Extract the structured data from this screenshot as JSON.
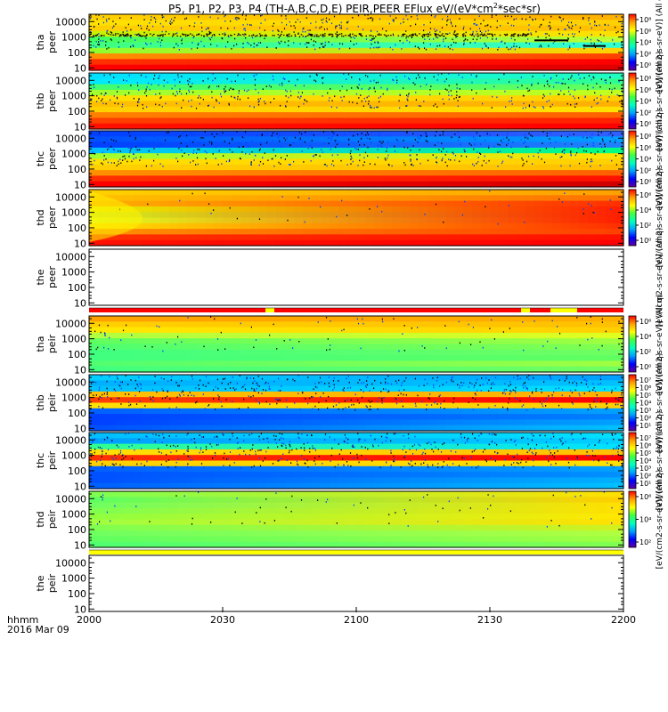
{
  "title_prefix": "P5, P1, P2, P3, P4 (TH-A,B,C,D,E) PEIR,PEER EFlux eV/(eV*cm",
  "title_sup": "2",
  "title_suffix": "*sec*sr)",
  "chart_data": {
    "type": "heatmap",
    "x_axis": {
      "ticks": [
        "2000",
        "2030",
        "2100",
        "2130",
        "2200"
      ],
      "corner_label_line1": "hhmm",
      "corner_label_line2": "2016 Mar 09",
      "range": [
        "20:00",
        "22:00"
      ]
    },
    "y_scale": "log",
    "y_range_eV": [
      7,
      30000
    ],
    "panels": [
      {
        "name": "tha peer",
        "probe": "tha",
        "species": "peer",
        "yticks": [
          "10000",
          "1000",
          "100",
          "10"
        ],
        "cbar_labels": [
          "10⁸",
          "10⁶",
          "10⁴",
          "10²",
          "10⁰"
        ],
        "cbar_text": "[eV/(cm2-s-sr-eV)] (All q)",
        "bar": null,
        "bands": [
          [
            "#ffd000",
            "#ffb000"
          ],
          [
            "#ffe000",
            "#ffd000"
          ],
          [
            "#ffd000",
            "#ffc000"
          ],
          [
            "#c8f000",
            "#ffe000"
          ],
          [
            "#40ff60",
            "#c0ff30"
          ],
          [
            "#40ff80",
            "#30ffd0"
          ],
          [
            "#90ff30",
            "#ffd000"
          ],
          [
            "#ff9000",
            "#ff4000"
          ],
          [
            "#ff3000",
            "#ff0000"
          ],
          [
            "#ff0000",
            "#e00000"
          ]
        ],
        "noise": 0.7,
        "black_line": 0.36,
        "yellow_wedge": false
      },
      {
        "name": "thb peer",
        "probe": "thb",
        "species": "peer",
        "yticks": [
          "10000",
          "1000",
          "100",
          "10"
        ],
        "cbar_labels": [
          "10⁸",
          "10⁶",
          "10⁴",
          "10²",
          "10⁰"
        ],
        "cbar_text": "[eV/(cm2-s-sr-eV)] (All q)",
        "bar": null,
        "bands": [
          [
            "#00e0ff",
            "#20ffc0"
          ],
          [
            "#00e8ff",
            "#30ff90"
          ],
          [
            "#40ff70",
            "#60ff60"
          ],
          [
            "#a0ff30",
            "#c0ff20"
          ],
          [
            "#ffe000",
            "#ffd000"
          ],
          [
            "#ffc000",
            "#ffb000"
          ],
          [
            "#ffd000",
            "#ffe000"
          ],
          [
            "#ff8000",
            "#ff6000"
          ],
          [
            "#ff4000",
            "#ff2000"
          ],
          [
            "#ff1000",
            "#ff0000"
          ]
        ],
        "noise": 0.55,
        "black_line": 0,
        "yellow_wedge": false
      },
      {
        "name": "thc peer",
        "probe": "thc",
        "species": "peer",
        "yticks": [
          "10000",
          "1000",
          "100",
          "10"
        ],
        "cbar_labels": [
          "10⁸",
          "10⁶",
          "10⁴",
          "10²",
          "10⁰"
        ],
        "cbar_text": "[eV/(cm2-s-sr-eV)] (All q)",
        "bar": null,
        "bands": [
          [
            "#0040ff",
            "#3060ff"
          ],
          [
            "#0050ff",
            "#00a0ff"
          ],
          [
            "#0040ff",
            "#2080ff"
          ],
          [
            "#00c0ff",
            "#00ff80"
          ],
          [
            "#a0ff30",
            "#ffe000"
          ],
          [
            "#ffe000",
            "#ffd000"
          ],
          [
            "#ffd000",
            "#ffc000"
          ],
          [
            "#ff9000",
            "#ff6000"
          ],
          [
            "#ff3000",
            "#ff1000"
          ],
          [
            "#ff0000",
            "#d00000"
          ]
        ],
        "noise": 0.65,
        "black_line": 0,
        "yellow_wedge": false
      },
      {
        "name": "thd peer",
        "probe": "thd",
        "species": "peer",
        "yticks": [
          "10000",
          "1000",
          "100",
          "10"
        ],
        "cbar_labels": [
          "10⁶",
          "10⁴",
          "10²",
          "10⁰"
        ],
        "cbar_text": "[eV/(cm2-s-sr-eV)] (All q)",
        "bar": null,
        "bands": [
          [
            "#ffd000",
            "#ffa000"
          ],
          [
            "#ffc000",
            "#ff7000"
          ],
          [
            "#ffb000",
            "#ff3000"
          ],
          [
            "#e8f000",
            "#ff2000"
          ],
          [
            "#d0f020",
            "#ff2000"
          ],
          [
            "#e0ff20",
            "#ff2000"
          ],
          [
            "#ffe000",
            "#ff3000"
          ],
          [
            "#ff9000",
            "#ff4000"
          ],
          [
            "#ff3000",
            "#ff1000"
          ],
          [
            "#ff1000",
            "#ff0000"
          ]
        ],
        "noise": 0.05,
        "black_line": 0,
        "yellow_wedge": true
      },
      {
        "name": "the peer",
        "probe": "the",
        "species": "peer",
        "yticks": [
          "10000",
          "1000",
          "100",
          "10"
        ],
        "cbar_labels": [],
        "cbar_text": "[eV/(cm2-s-sr-eV)] (All q)",
        "bar": "red",
        "bands": [],
        "noise": 0,
        "black_line": 0,
        "yellow_wedge": false
      },
      {
        "name": "tha peir",
        "probe": "tha",
        "species": "peir",
        "yticks": [
          "10000",
          "1000",
          "100",
          "10"
        ],
        "cbar_labels": [
          "10⁶",
          "10⁴",
          "10²",
          "10⁰"
        ],
        "cbar_text": "[eV/(cm2-s-sr-eV)] (All q)",
        "bar": "yellow",
        "bands": [
          [
            "#ffa000",
            "#ffb000"
          ],
          [
            "#ffd000",
            "#ffc000"
          ],
          [
            "#ffe800",
            "#ffd000"
          ],
          [
            "#b0ff40",
            "#e0ff20"
          ],
          [
            "#60ff60",
            "#a0ff40"
          ],
          [
            "#50ff70",
            "#80ff50"
          ],
          [
            "#40ff80",
            "#70ff60"
          ],
          [
            "#40ff80",
            "#60ff60"
          ],
          [
            "#50ff70",
            "#a0ff40"
          ],
          [
            "#40ff80",
            "#70ff60"
          ]
        ],
        "noise": 0.12,
        "black_line": 0,
        "yellow_wedge": false
      },
      {
        "name": "thb peir",
        "probe": "thb",
        "species": "peir",
        "yticks": [
          "10000",
          "1000",
          "100",
          "10"
        ],
        "cbar_labels": [
          "10⁷",
          "10⁶",
          "10⁵",
          "10⁴",
          "10³",
          "10²",
          "10¹"
        ],
        "cbar_text": "[eV/(cm2-s-sr-eV)] (All q)",
        "bar": null,
        "bands": [
          [
            "#00d0ff",
            "#00a0ff"
          ],
          [
            "#00b0ff",
            "#00c0ff"
          ],
          [
            "#00c0ff",
            "#00e0ff"
          ],
          [
            "#ffc000",
            "#ffb000"
          ],
          [
            "#ff4000",
            "#ff0000"
          ],
          [
            "#ffe000",
            "#ffd000"
          ],
          [
            "#0060ff",
            "#00a0ff"
          ],
          [
            "#0040ff",
            "#0080ff"
          ],
          [
            "#0040ff",
            "#00a0ff"
          ],
          [
            "#0050ff",
            "#00c0ff"
          ]
        ],
        "noise": 0.6,
        "black_line": 0,
        "yellow_wedge": false
      },
      {
        "name": "thc peir",
        "probe": "thc",
        "species": "peir",
        "yticks": [
          "10000",
          "1000",
          "100",
          "10"
        ],
        "cbar_labels": [
          "10⁷",
          "10⁶",
          "10⁵",
          "10⁴",
          "10³",
          "10²",
          "10¹"
        ],
        "cbar_text": "[eV/(cm2-s-sr-eV)] (All q)",
        "bar": "red",
        "bands": [
          [
            "#00c0ff",
            "#00e0ff"
          ],
          [
            "#00a0ff",
            "#00d0ff"
          ],
          [
            "#30ff90",
            "#00e0ff"
          ],
          [
            "#ffe000",
            "#ffc000"
          ],
          [
            "#ff3000",
            "#ff0000"
          ],
          [
            "#ffd000",
            "#ffe000"
          ],
          [
            "#0060ff",
            "#00a0ff"
          ],
          [
            "#0050ff",
            "#0090ff"
          ],
          [
            "#0050ff",
            "#00b0ff"
          ],
          [
            "#0060ff",
            "#00c0ff"
          ]
        ],
        "noise": 0.6,
        "black_line": 0,
        "yellow_wedge": false
      },
      {
        "name": "thd peir",
        "probe": "thd",
        "species": "peir",
        "yticks": [
          "10000",
          "1000",
          "100",
          "10"
        ],
        "cbar_labels": [
          "10⁶",
          "10⁴",
          "10²"
        ],
        "cbar_text": "[eV/(cm2-s-sr-eV)] (All q)",
        "bar": "yellow",
        "bands": [
          [
            "#80ff50",
            "#ffe000"
          ],
          [
            "#60ff60",
            "#ffd000"
          ],
          [
            "#70ff60",
            "#ffe000"
          ],
          [
            "#80ff50",
            "#ffe000"
          ],
          [
            "#90ff40",
            "#ffe800"
          ],
          [
            "#a0ff40",
            "#ffe000"
          ],
          [
            "#80ff50",
            "#d0f020"
          ],
          [
            "#70ff60",
            "#b0ff40"
          ],
          [
            "#60ff60",
            "#a0ff40"
          ],
          [
            "#50ff70",
            "#80ff50"
          ]
        ],
        "noise": 0.08,
        "black_line": 0,
        "yellow_wedge": false
      },
      {
        "name": "the peir",
        "probe": "the",
        "species": "peir",
        "yticks": [
          "10000",
          "1000",
          "100",
          "10"
        ],
        "cbar_labels": [],
        "cbar_text": "",
        "bar": null,
        "bands": [],
        "noise": 0,
        "black_line": 0,
        "yellow_wedge": false
      }
    ]
  }
}
